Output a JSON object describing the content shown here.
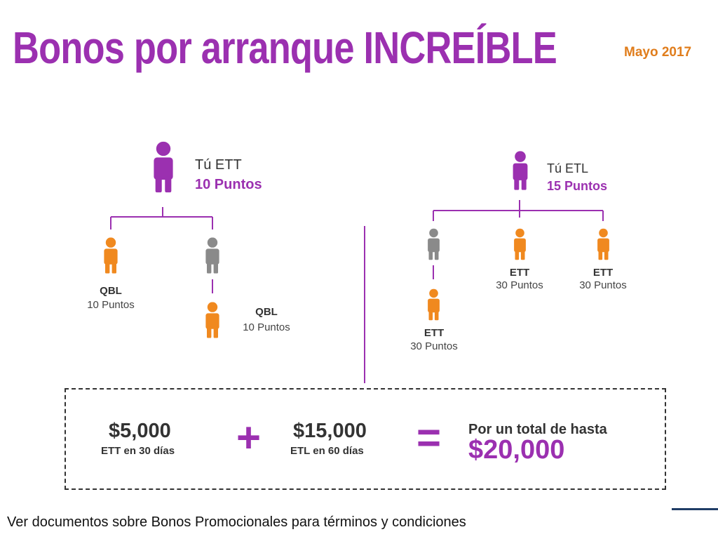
{
  "header": {
    "title": "Bonos por arranque INCREÍBLE",
    "date": "Mayo 2017"
  },
  "colors": {
    "purple": "#9b30b0",
    "orange": "#f0891f",
    "gray": "#8a8a8a",
    "date": "#e07d1c"
  },
  "left_tree": {
    "root": {
      "name": "Tú ETT",
      "points": "10 Puntos"
    },
    "child_a": {
      "code": "QBL",
      "points": "10 Puntos"
    },
    "child_c": {
      "code": "QBL",
      "points": "10 Puntos"
    }
  },
  "right_tree": {
    "root": {
      "name": "Tú ETL",
      "points": "15 Puntos"
    },
    "child_b": {
      "code": "ETT",
      "points": "30 Puntos"
    },
    "child_c": {
      "code": "ETT",
      "points": "30 Puntos"
    },
    "grandchild": {
      "code": "ETT",
      "points": "30 Puntos"
    }
  },
  "summary": {
    "bonus1_amount": "$5,000",
    "bonus1_label": "ETT en 30 días",
    "plus": "+",
    "bonus2_amount": "$15,000",
    "bonus2_label": "ETL en 60 días",
    "equals": "=",
    "total_label": "Por un total de hasta",
    "total_amount": "$20,000"
  },
  "footer": {
    "text": "Ver documentos sobre Bonos Promocionales para términos y condiciones"
  }
}
